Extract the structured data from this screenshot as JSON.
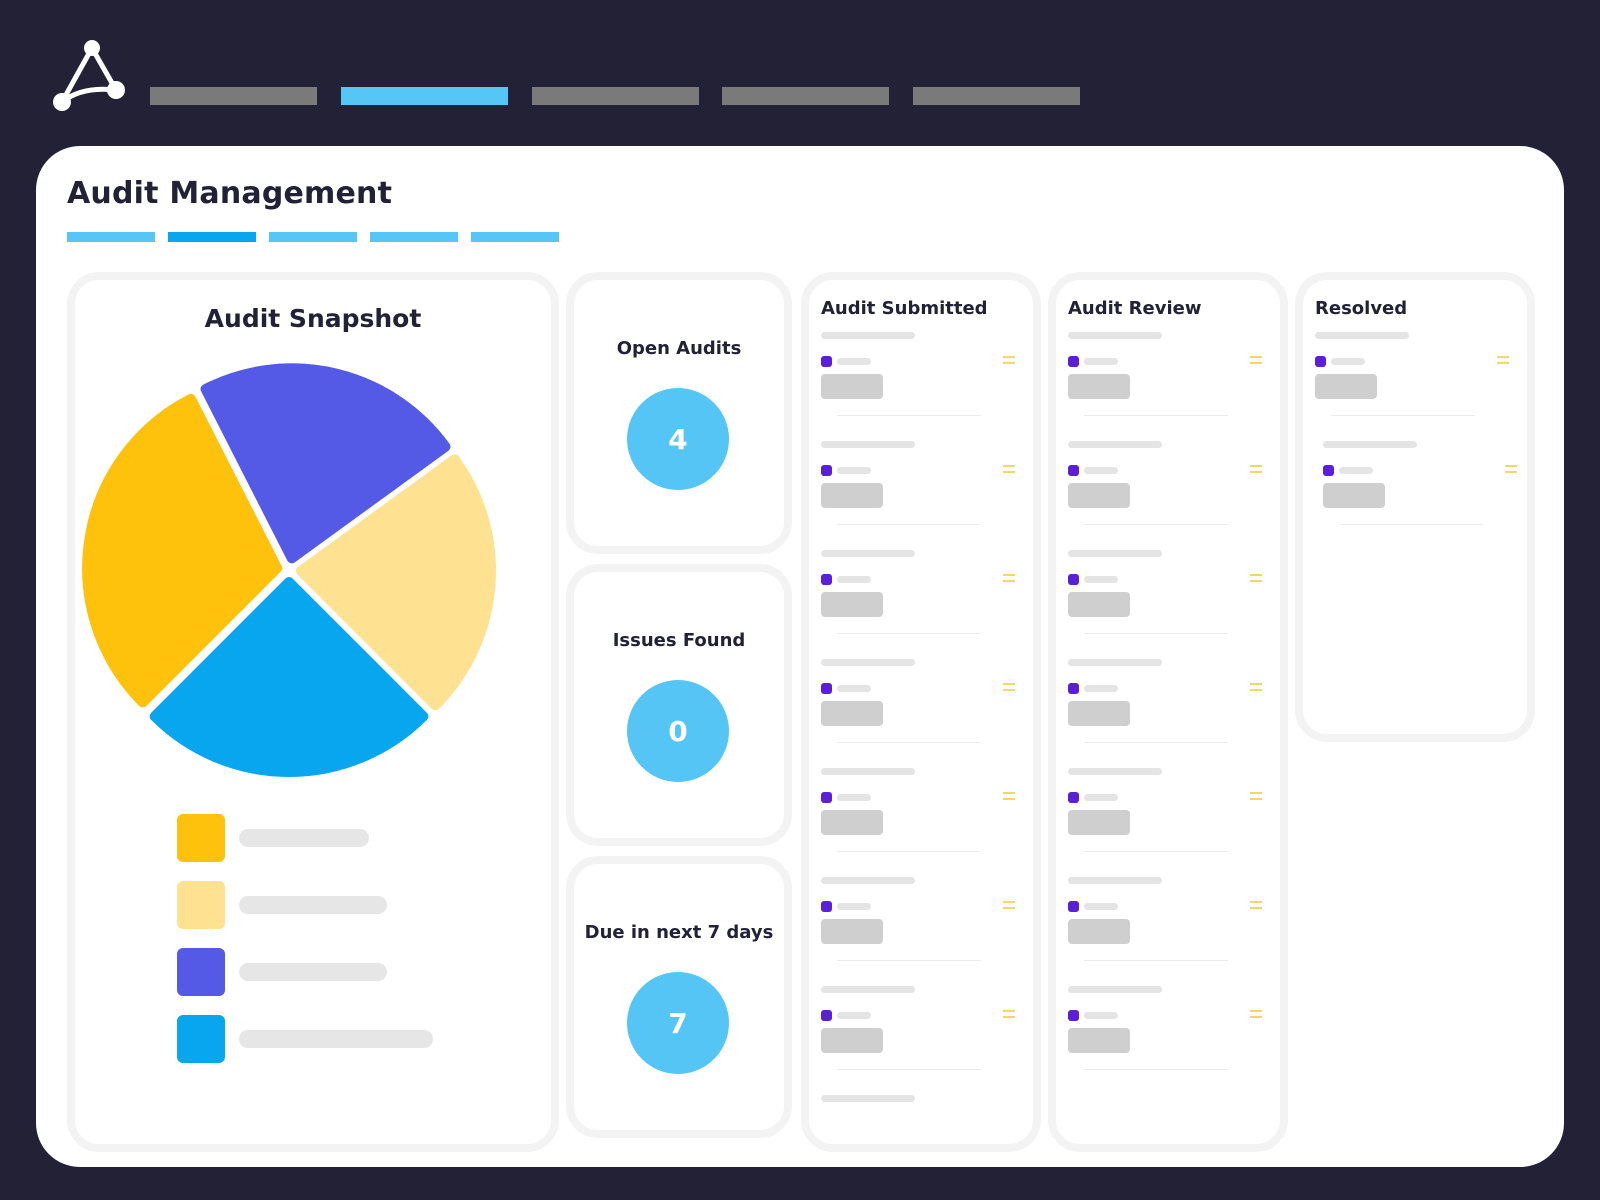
{
  "app": {
    "logo_icon": "network-triangle-icon",
    "top_nav_count": 5,
    "top_nav_active_index": 1
  },
  "colors": {
    "background": "#222136",
    "accent": "#56c6f6",
    "accent_dark": "#08a6ee",
    "stat_circle": "#55c5f6",
    "card_dot": "#5a1fd6",
    "card_menu": "#f4d76a"
  },
  "page": {
    "title": "Audit Management",
    "subtab_count": 5,
    "subtab_active_index": 1
  },
  "snapshot": {
    "title": "Audit Snapshot"
  },
  "chart_data": {
    "type": "pie",
    "title": "Audit Snapshot",
    "slices": [
      {
        "label": "",
        "value": 30,
        "color": "#fec20d"
      },
      {
        "label": "",
        "value": 22.5,
        "color": "#545ae5"
      },
      {
        "label": "",
        "value": 22.5,
        "color": "#fee292"
      },
      {
        "label": "",
        "value": 25,
        "color": "#08a6ee"
      }
    ],
    "legend": [
      {
        "label": "",
        "color": "#fec20d"
      },
      {
        "label": "",
        "color": "#fee292"
      },
      {
        "label": "",
        "color": "#545ae5"
      },
      {
        "label": "",
        "color": "#08a6ee"
      }
    ]
  },
  "stats": [
    {
      "label": "Open Audits",
      "value": "4"
    },
    {
      "label": "Issues Found",
      "value": "0"
    },
    {
      "label": "Due in next 7 days",
      "value": "7"
    }
  ],
  "board": {
    "columns": [
      {
        "title": "Audit Submitted",
        "card_count": 7
      },
      {
        "title": "Audit Review",
        "card_count": 7
      },
      {
        "title": "Resolved",
        "card_count": 2
      }
    ]
  }
}
